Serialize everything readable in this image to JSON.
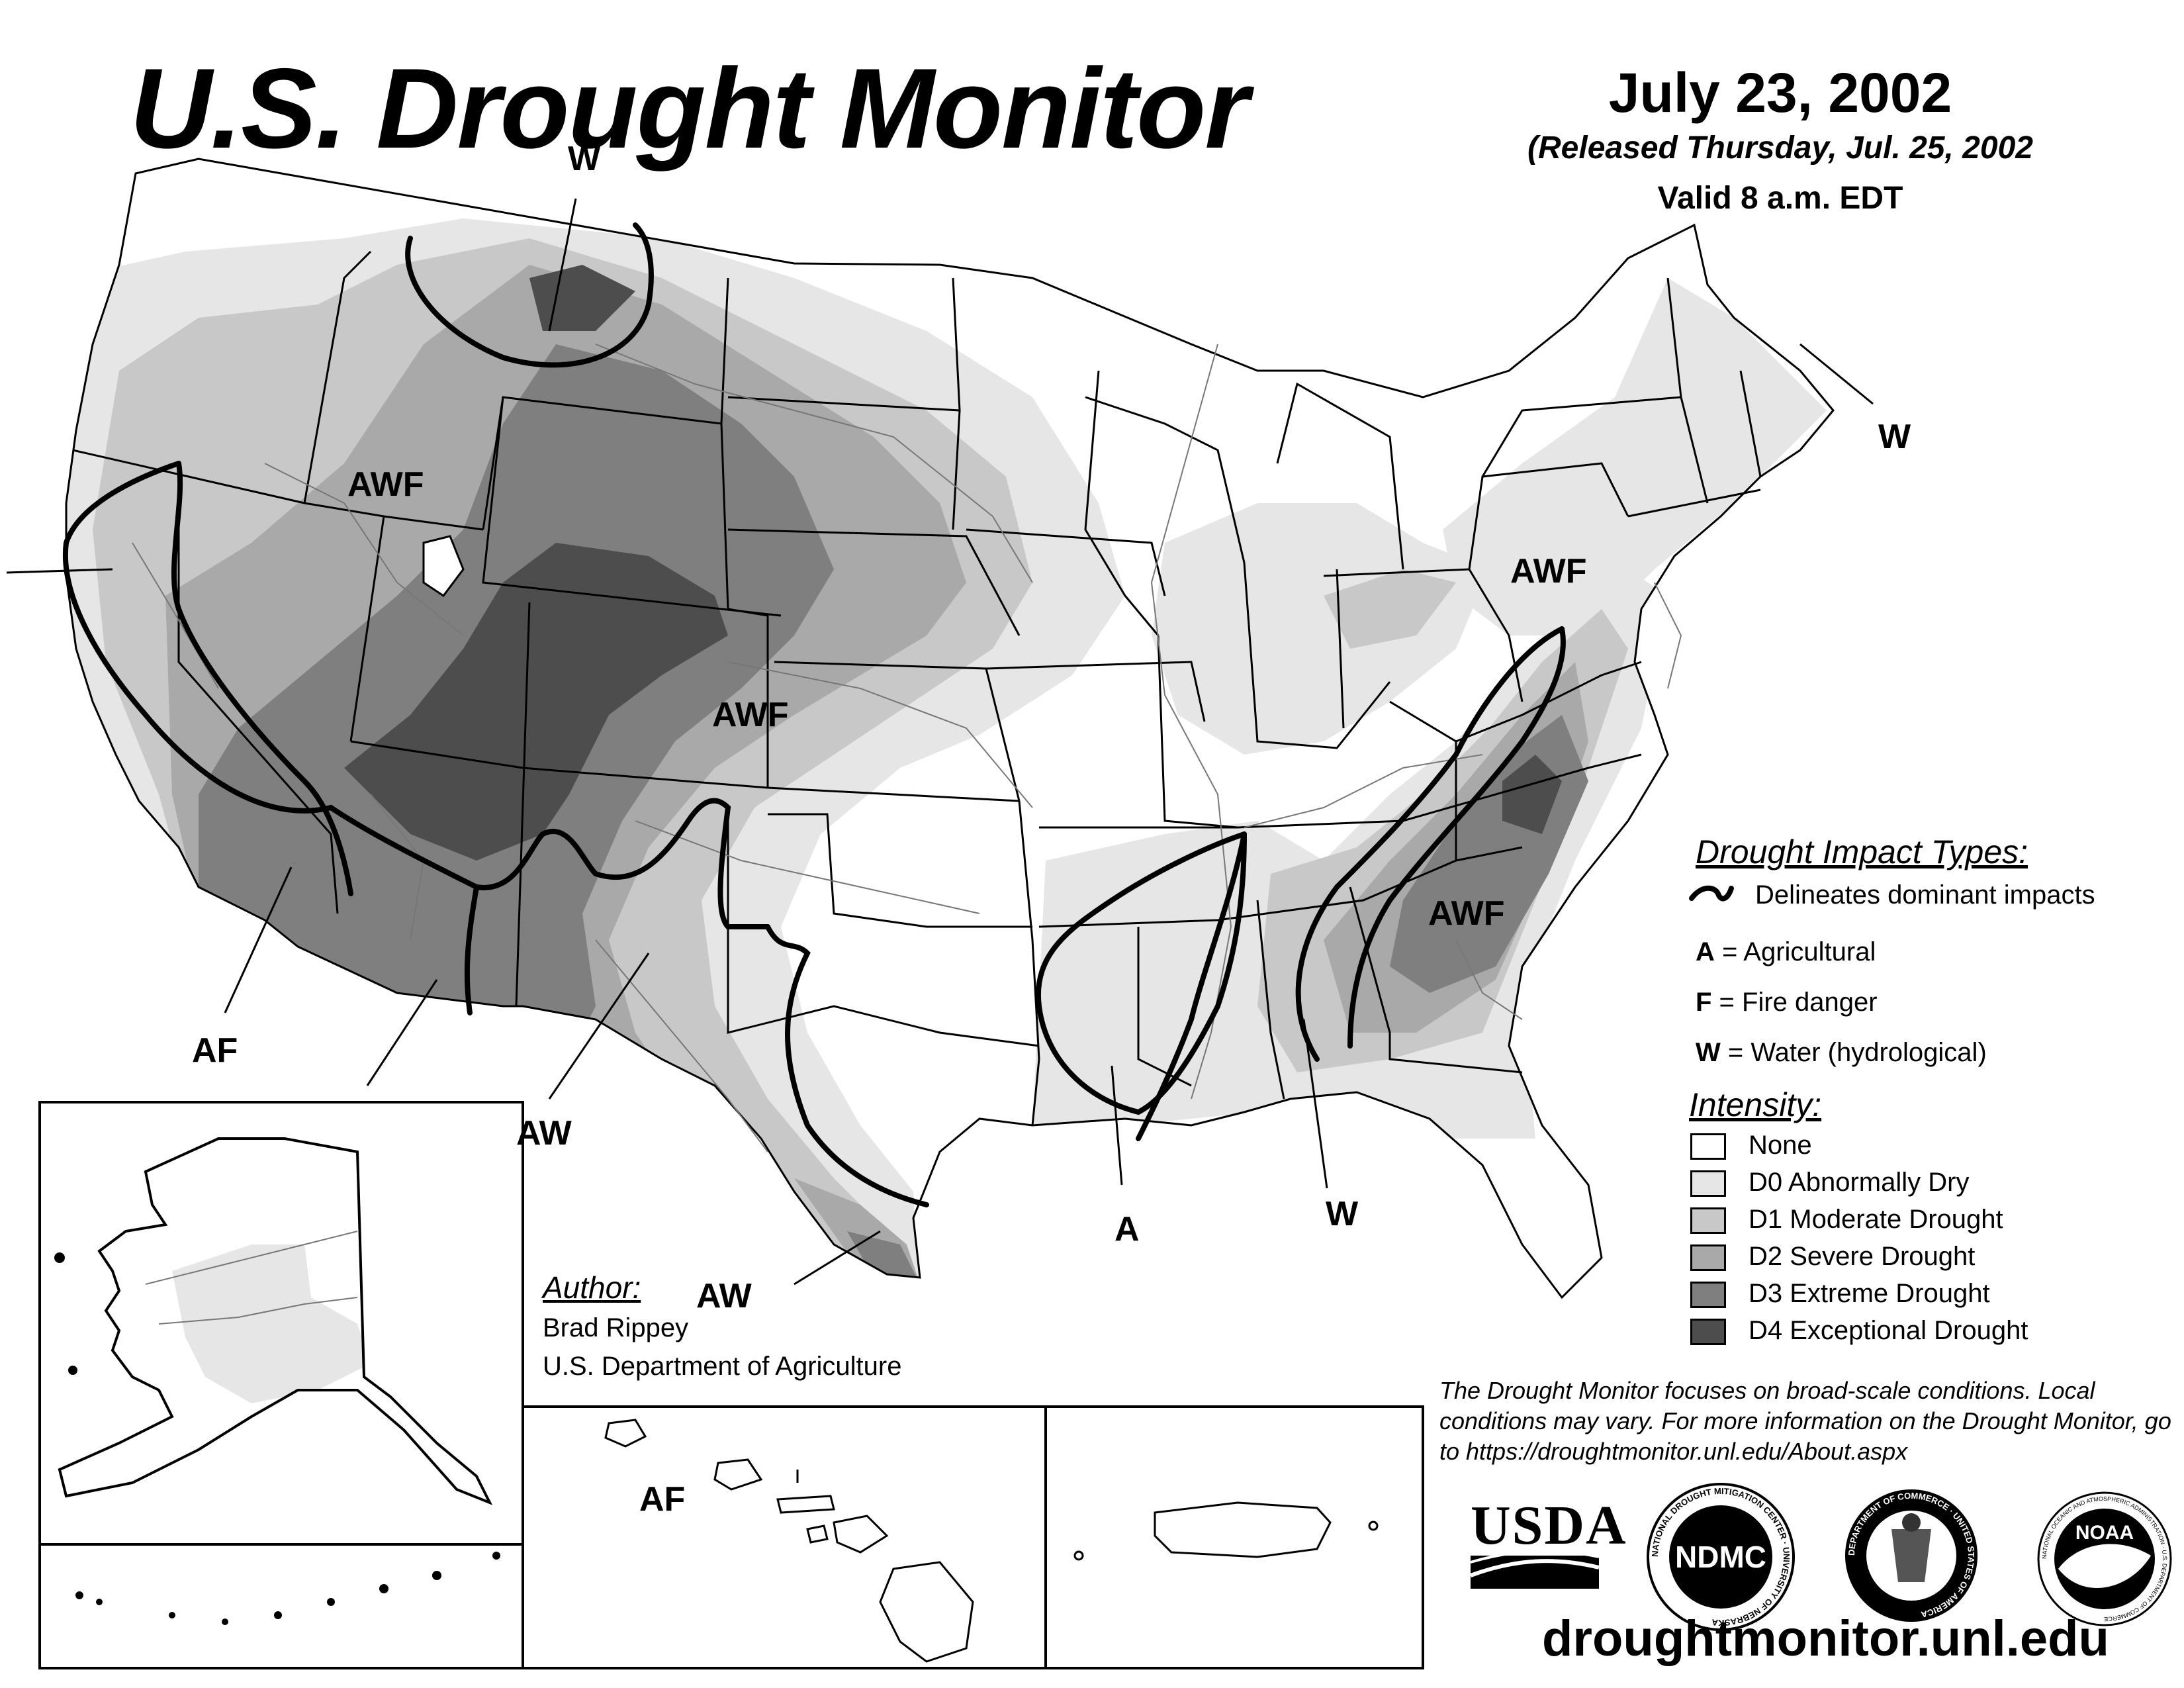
{
  "header": {
    "title": "U.S. Drought Monitor",
    "date": "July 23, 2002",
    "released": "(Released Thursday, Jul. 25, 2002",
    "valid": "Valid 8 a.m. EDT"
  },
  "impact_labels": [
    {
      "id": "w-montana",
      "text": "W"
    },
    {
      "id": "awf-idaho",
      "text": "AWF"
    },
    {
      "id": "awf-colorado",
      "text": "AWF"
    },
    {
      "id": "af-california",
      "text": "AF"
    },
    {
      "id": "aw-newmexico",
      "text": "AW"
    },
    {
      "id": "aw-texas",
      "text": "AW"
    },
    {
      "id": "a-louisiana",
      "text": "A"
    },
    {
      "id": "w-alabama",
      "text": "W"
    },
    {
      "id": "awf-carolinas",
      "text": "AWF"
    },
    {
      "id": "awf-pennsylvania",
      "text": "AWF"
    },
    {
      "id": "w-maine",
      "text": "W"
    },
    {
      "id": "af-hawaii",
      "text": "AF"
    }
  ],
  "legend": {
    "impact_heading": "Drought Impact Types:",
    "delineates": "Delineates dominant impacts",
    "impacts": [
      {
        "code": "A",
        "text": " = Agricultural"
      },
      {
        "code": "F",
        "text": " = Fire danger"
      },
      {
        "code": "W",
        "text": " = Water (hydrological)"
      }
    ],
    "intensity_heading": "Intensity:",
    "intensity": [
      {
        "label": "None",
        "color": "#ffffff"
      },
      {
        "label": "D0 Abnormally Dry",
        "color": "#e6e6e6"
      },
      {
        "label": "D1 Moderate Drought",
        "color": "#c8c8c8"
      },
      {
        "label": "D2 Severe Drought",
        "color": "#a9a9a9"
      },
      {
        "label": "D3 Extreme Drought",
        "color": "#7f7f7f"
      },
      {
        "label": "D4 Exceptional Drought",
        "color": "#4d4d4d"
      }
    ]
  },
  "author": {
    "heading": "Author:",
    "name": "Brad Rippey",
    "org": "U.S. Department of Agriculture"
  },
  "disclaimer": "The Drought Monitor focuses on broad-scale conditions. Local conditions may vary. For more information on the Drought Monitor, go to https://droughtmonitor.unl.edu/About.aspx",
  "logos": {
    "usda": "USDA",
    "ndmc": "NDMC",
    "ndmc_ring": "NATIONAL DROUGHT MITIGATION CENTER · UNIVERSITY OF NEBRASKA",
    "commerce_ring": "DEPARTMENT OF COMMERCE · UNITED STATES OF AMERICA",
    "noaa": "NOAA",
    "noaa_ring": "NATIONAL OCEANIC AND ATMOSPHERIC ADMINISTRATION · U.S. DEPARTMENT OF COMMERCE"
  },
  "website": "droughtmonitor.unl.edu"
}
